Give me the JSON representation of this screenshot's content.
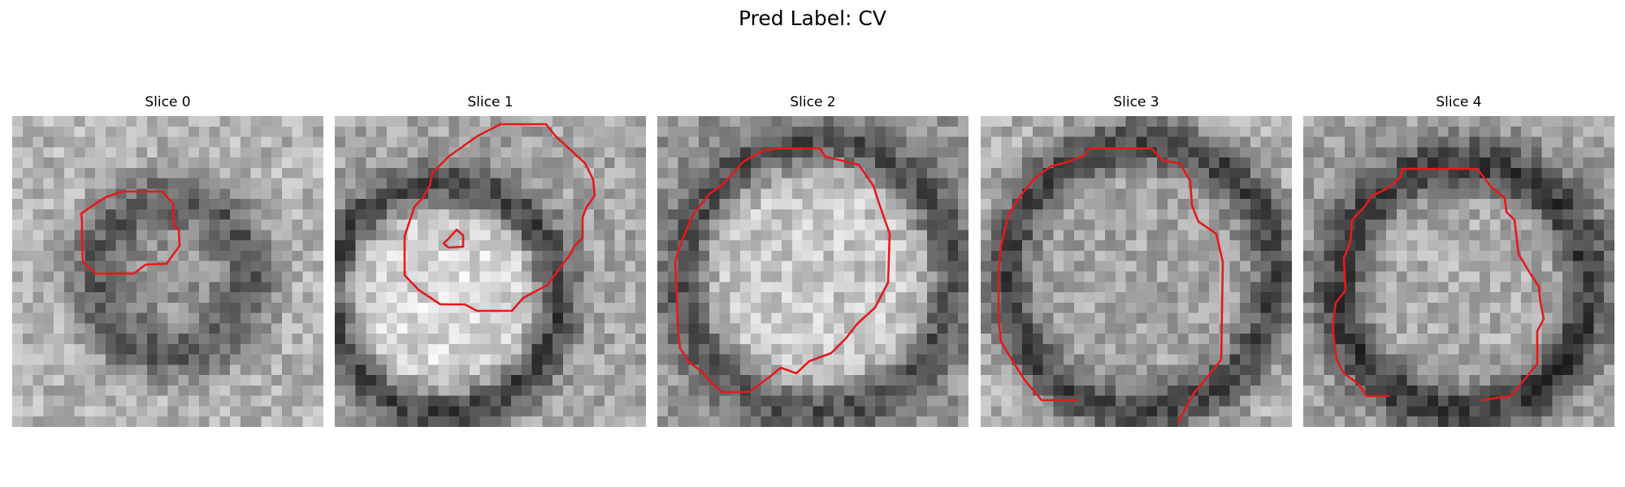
{
  "figure": {
    "title": "Pred Label: CV"
  },
  "colors": {
    "contour": "#e41a1c",
    "background": "#ffffff"
  },
  "slices": [
    {
      "title": "Slice 0"
    },
    {
      "title": "Slice 1"
    },
    {
      "title": "Slice 2"
    },
    {
      "title": "Slice 3"
    },
    {
      "title": "Slice 4"
    }
  ]
}
